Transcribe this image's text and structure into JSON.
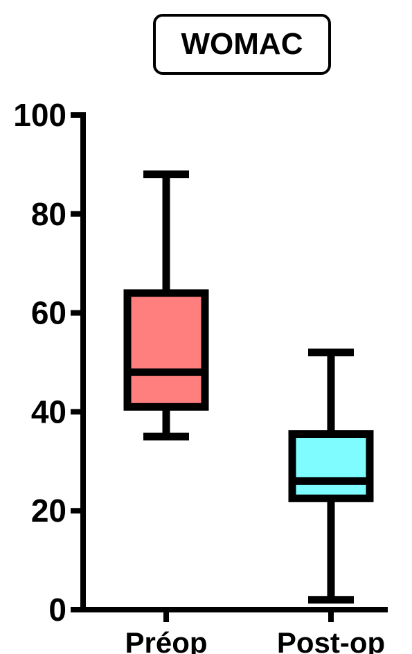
{
  "chart_data": {
    "type": "box",
    "title": "WOMAC",
    "xlabel": "",
    "ylabel": "",
    "ylim": [
      0,
      100
    ],
    "yticks": [
      "0",
      "20",
      "40",
      "60",
      "80",
      "100"
    ],
    "grid": false,
    "categories": [
      "Préop",
      "Post-op"
    ],
    "boxes": [
      {
        "category": "Préop",
        "min": 35,
        "q1": 41,
        "median": 48,
        "q3": 64,
        "max": 88,
        "color": "#ff7f7f"
      },
      {
        "category": "Post-op",
        "min": 2,
        "q1": 22.5,
        "median": 26,
        "q3": 35.5,
        "max": 52,
        "color": "#7ffcff"
      }
    ]
  }
}
